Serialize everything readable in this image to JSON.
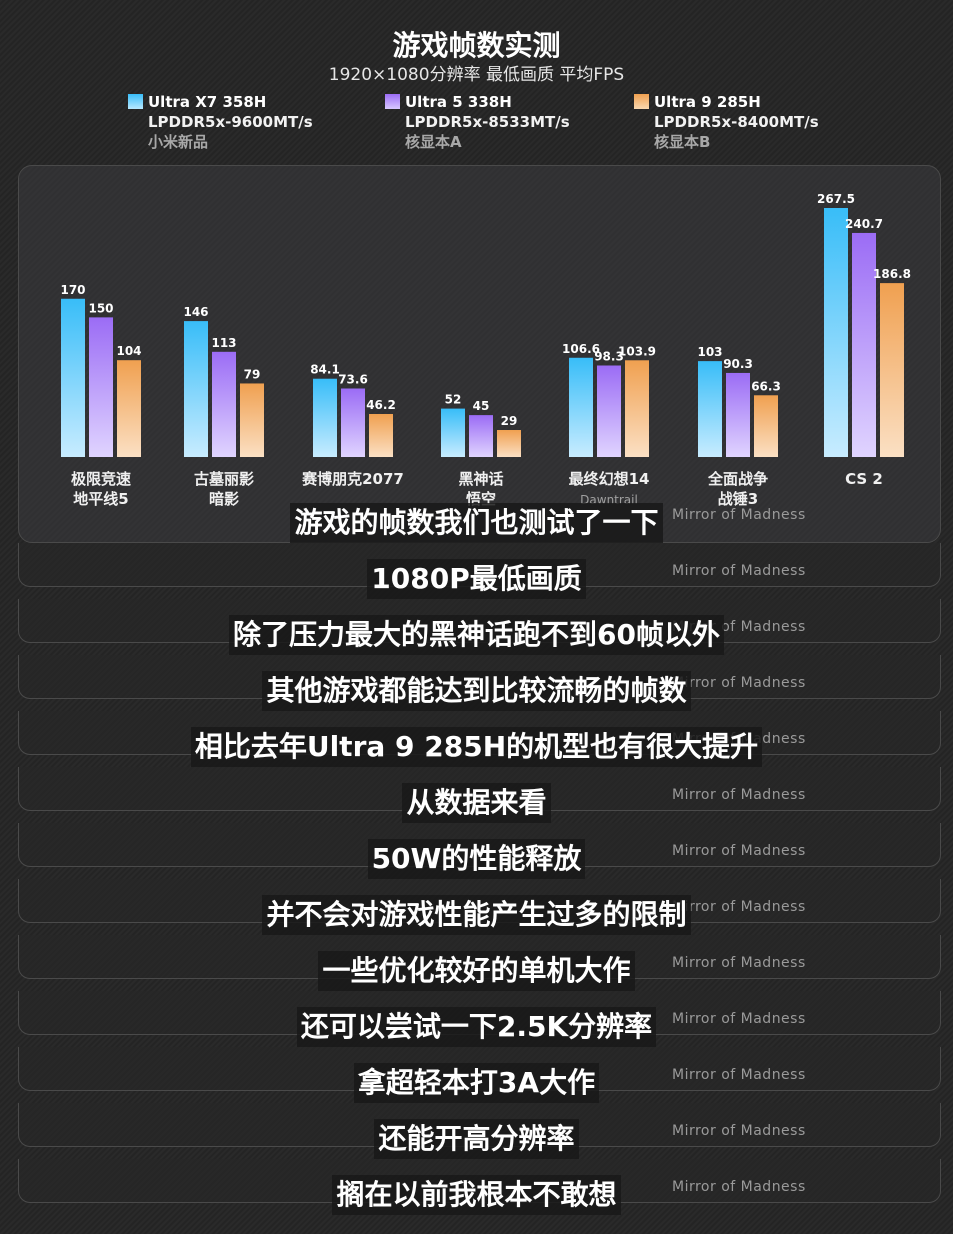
{
  "header": {
    "title": "游戏帧数实测",
    "subtitle": "1920×1080分辨率  最低画质  平均FPS"
  },
  "legend": [
    {
      "name": "Ultra X7 358H",
      "memory": "LPDDR5x-9600MT/s",
      "device": "小米新品",
      "color": "#38bdf8"
    },
    {
      "name": "Ultra 5 338H",
      "memory": "LPDDR5x-8533MT/s",
      "device": "核显本A",
      "color": "#9b6cf5"
    },
    {
      "name": "Ultra 9 285H",
      "memory": "LPDDR5x-8400MT/s",
      "device": "核显本B",
      "color": "#f0a050"
    }
  ],
  "chart_data": {
    "type": "bar",
    "title": "游戏帧数实测",
    "subtitle": "1920×1080分辨率  最低画质  平均FPS",
    "categories": [
      "极限竞速\n地平线5",
      "古墓丽影\n暗影",
      "赛博朋克2077",
      "黑神话\n悟空",
      "最终幻想14\nDawntrail",
      "全面战争\n战锤3",
      "CS 2"
    ],
    "series": [
      {
        "name": "Ultra X7 358H",
        "values": [
          170,
          146,
          84.1,
          52,
          106.6,
          103,
          267.5
        ]
      },
      {
        "name": "Ultra 5 338H",
        "values": [
          150,
          113,
          73.6,
          45,
          98.3,
          90.3,
          240.7
        ]
      },
      {
        "name": "Ultra 9 285H",
        "values": [
          104,
          79,
          46.2,
          29,
          103.9,
          66.3,
          186.8
        ]
      }
    ],
    "value_labels": [
      [
        "170",
        "146",
        "84.1",
        "52",
        "106.6",
        "103",
        "267.5"
      ],
      [
        "150",
        "113",
        "73.6",
        "45",
        "98.3",
        "90.3",
        "240.7"
      ],
      [
        "104",
        "79",
        "46.2",
        "29",
        "103.9",
        "66.3",
        "186.8"
      ]
    ],
    "ylim": [
      0,
      267.5
    ],
    "grid": false,
    "legend_position": "top"
  },
  "watermark": "Mirror of Madness",
  "captions": [
    "游戏的帧数我们也测试了一下",
    "1080P最低画质",
    "除了压力最大的黑神话跑不到60帧以外",
    "其他游戏都能达到比较流畅的帧数",
    "相比去年Ultra 9 285H的机型也有很大提升",
    "从数据来看",
    "50W的性能释放",
    "并不会对游戏性能产生过多的限制",
    "一些优化较好的单机大作",
    "还可以尝试一下2.5K分辨率",
    "拿超轻本打3A大作",
    "还能开高分辨率",
    "搁在以前我根本不敢想"
  ]
}
